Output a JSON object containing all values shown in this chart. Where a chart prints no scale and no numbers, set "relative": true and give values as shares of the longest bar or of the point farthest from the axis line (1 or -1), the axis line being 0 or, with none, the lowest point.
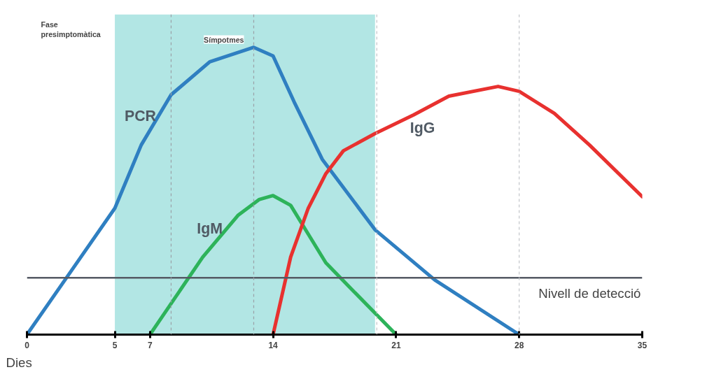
{
  "chart_data": {
    "type": "line",
    "relative": true,
    "xlabel": "Dies",
    "xlim": [
      0,
      35
    ],
    "xticks": [
      0,
      5,
      7,
      14,
      21,
      28,
      35
    ],
    "series": [
      {
        "name": "PCR",
        "color": "#2f7fc1",
        "x": [
          0,
          2.5,
          5,
          6.5,
          8.2,
          10.4,
          12.9,
          14,
          15.2,
          16.8,
          19.8,
          23.2,
          28
        ],
        "values": [
          0,
          0.22,
          0.44,
          0.66,
          0.835,
          0.95,
          1,
          0.97,
          0.81,
          0.61,
          0.365,
          0.19,
          0
        ]
      },
      {
        "name": "IgM",
        "color": "#2db35a",
        "x": [
          7,
          10,
          12,
          13.2,
          14,
          15,
          16,
          17,
          18.5,
          21
        ],
        "values": [
          0,
          0.27,
          0.415,
          0.47,
          0.484,
          0.45,
          0.35,
          0.25,
          0.156,
          0
        ]
      },
      {
        "name": "IgG",
        "color": "#e8312f",
        "x": [
          14,
          15,
          16,
          17,
          18,
          19.8,
          22,
          24,
          26.8,
          28,
          30,
          32,
          35
        ],
        "values": [
          0,
          0.27,
          0.44,
          0.56,
          0.64,
          0.7,
          0.765,
          0.83,
          0.864,
          0.847,
          0.77,
          0.66,
          0.48
        ]
      }
    ],
    "bands": [
      {
        "axis": "x",
        "from": 5,
        "to": 19.8,
        "label": "Símpotmes",
        "color": "#b2e6e4"
      }
    ],
    "ref_lines": [
      {
        "axis": "y",
        "value": 0.198,
        "label": "Nivell de detecció",
        "color": "#555a64",
        "line_style": "solid"
      },
      {
        "axis": "x",
        "value": 8.2,
        "label": null,
        "color": "#9aa0a6",
        "line_style": "dashed"
      },
      {
        "axis": "x",
        "value": 12.9,
        "label": null,
        "color": "#9aa0a6",
        "line_style": "dashed"
      },
      {
        "axis": "x",
        "value": 19.9,
        "label": null,
        "color": "#c0c4c8",
        "line_style": "dashed"
      },
      {
        "axis": "x",
        "value": 28,
        "label": null,
        "color": "#c0c4c8",
        "line_style": "dashed"
      }
    ],
    "annotations": [
      "Fase presimptomàtica"
    ],
    "grid": false,
    "marker": "none",
    "line_style": "solid"
  }
}
